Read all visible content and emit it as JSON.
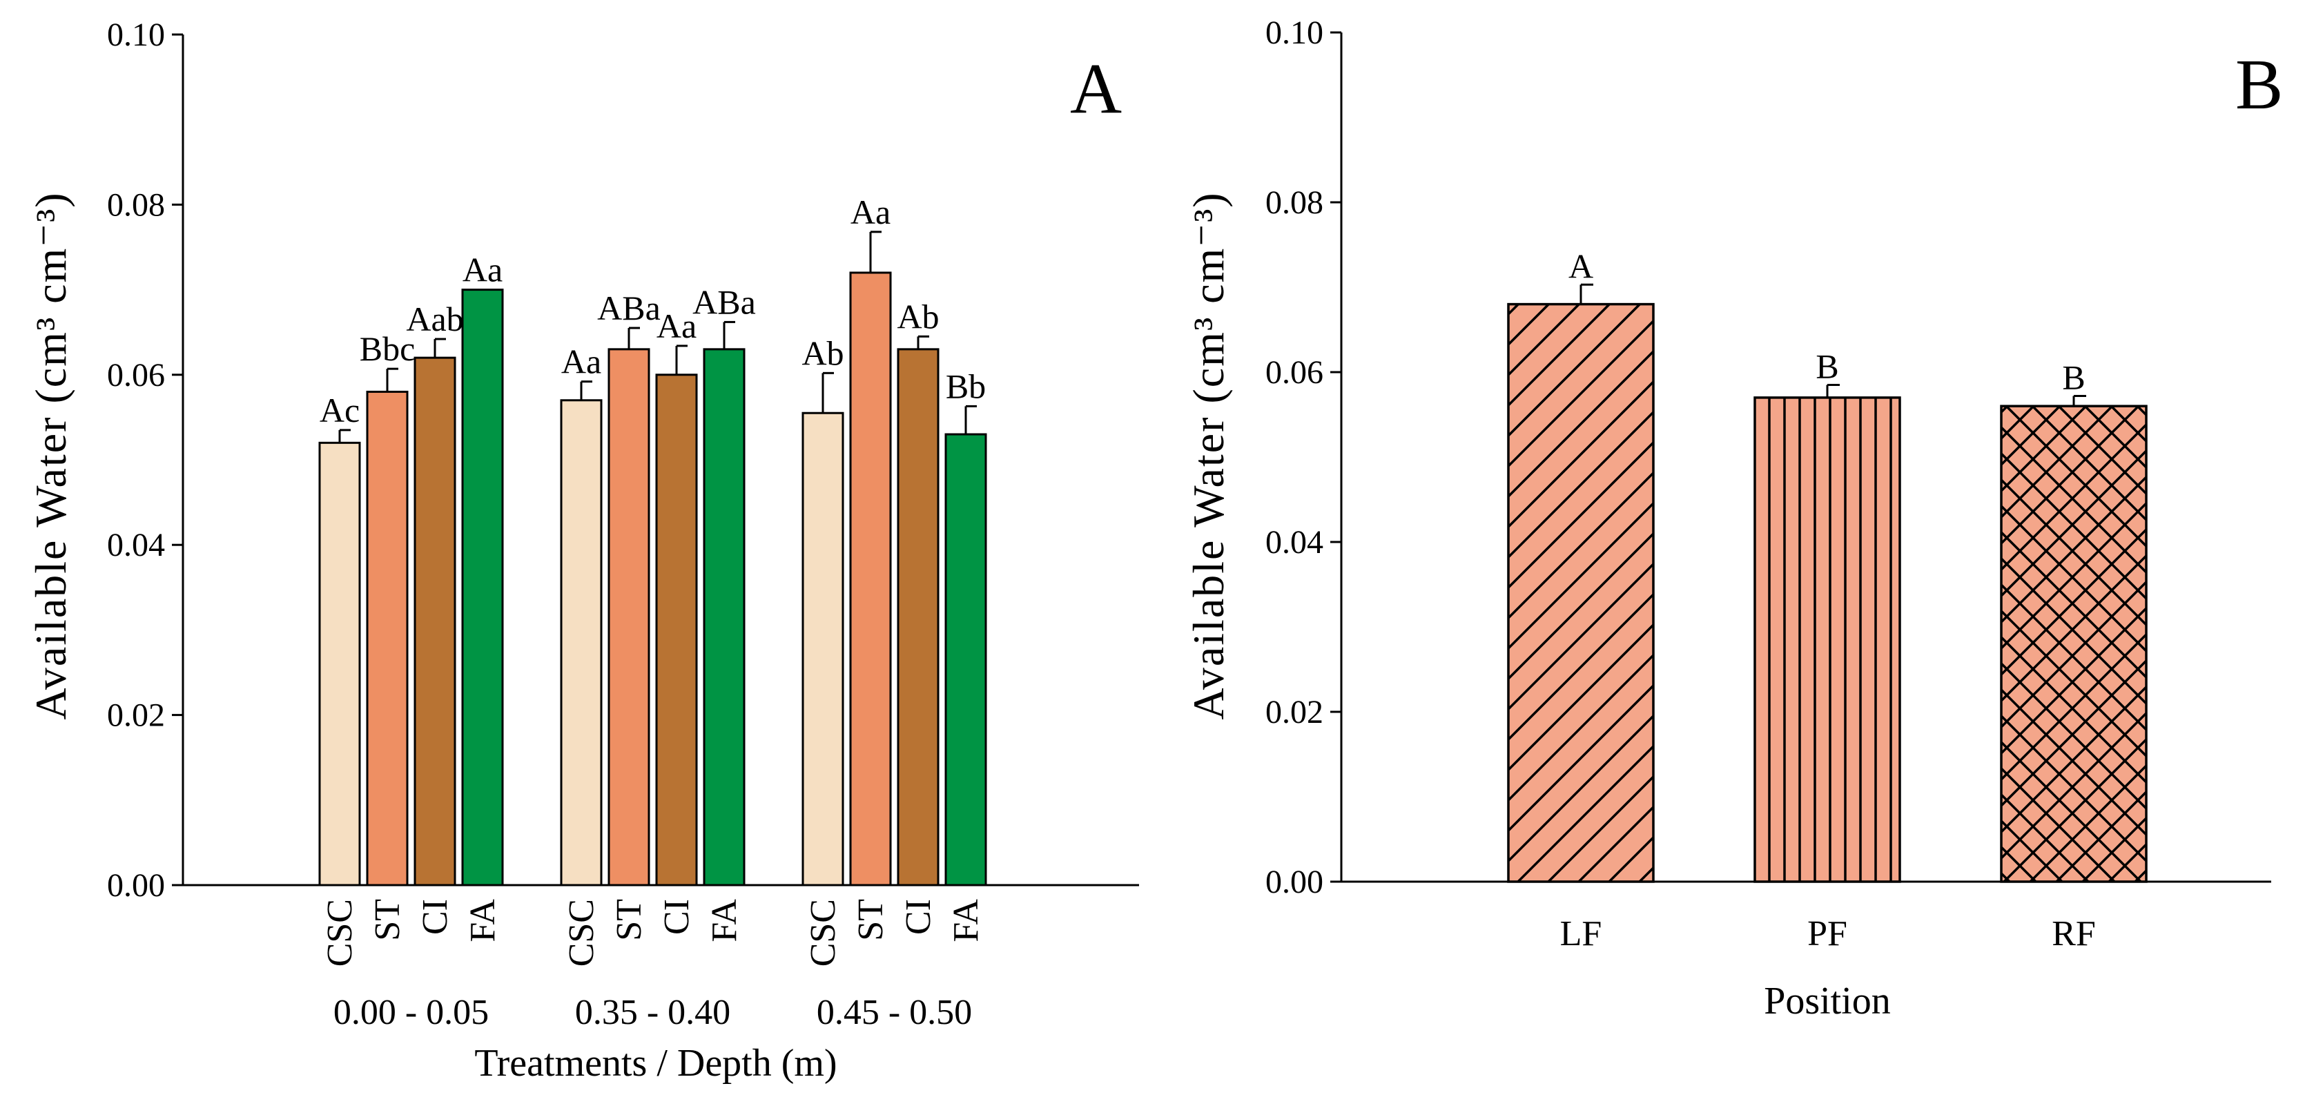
{
  "chart_data": [
    {
      "panel": "A",
      "type": "bar",
      "ylabel": "Available Water (cm³ cm⁻³)",
      "xlabel": "Treatments / Depth (m)",
      "ylim": [
        0,
        0.1
      ],
      "yticks": [
        "0.00",
        "0.02",
        "0.04",
        "0.06",
        "0.08",
        "0.10"
      ],
      "groups": [
        {
          "depth": "0.00 - 0.05",
          "bars": [
            {
              "treatment": "CSC",
              "value": 0.052,
              "error": 0.0015,
              "label": "Ac",
              "color": "#f6dfc2"
            },
            {
              "treatment": "ST",
              "value": 0.058,
              "error": 0.0027,
              "label": "Bbc",
              "color": "#ee8f63"
            },
            {
              "treatment": "CI",
              "value": 0.062,
              "error": 0.0022,
              "label": "Aab",
              "color": "#b87333"
            },
            {
              "treatment": "FA",
              "value": 0.07,
              "error": 0.0,
              "label": "Aa",
              "color": "#009444"
            }
          ]
        },
        {
          "depth": "0.35 - 0.40",
          "bars": [
            {
              "treatment": "CSC",
              "value": 0.057,
              "error": 0.0022,
              "label": "Aa",
              "color": "#f6dfc2"
            },
            {
              "treatment": "ST",
              "value": 0.063,
              "error": 0.0025,
              "label": "ABa",
              "color": "#ee8f63"
            },
            {
              "treatment": "CI",
              "value": 0.06,
              "error": 0.0034,
              "label": "Aa",
              "color": "#b87333"
            },
            {
              "treatment": "FA",
              "value": 0.063,
              "error": 0.0032,
              "label": "ABa",
              "color": "#009444"
            }
          ]
        },
        {
          "depth": "0.45 - 0.50",
          "bars": [
            {
              "treatment": "CSC",
              "value": 0.0555,
              "error": 0.0047,
              "label": "Ab",
              "color": "#f6dfc2"
            },
            {
              "treatment": "ST",
              "value": 0.072,
              "error": 0.0048,
              "label": "Aa",
              "color": "#ee8f63"
            },
            {
              "treatment": "CI",
              "value": 0.063,
              "error": 0.0015,
              "label": "Ab",
              "color": "#b87333"
            },
            {
              "treatment": "FA",
              "value": 0.053,
              "error": 0.0033,
              "label": "Bb",
              "color": "#009444"
            }
          ]
        }
      ]
    },
    {
      "panel": "B",
      "type": "bar",
      "ylabel": "Available Water (cm³ cm⁻³)",
      "xlabel": "Position",
      "ylim": [
        0,
        0.1
      ],
      "yticks": [
        "0.00",
        "0.02",
        "0.04",
        "0.06",
        "0.08",
        "0.10"
      ],
      "categories": [
        "LF",
        "PF",
        "RF"
      ],
      "values": [
        0.068,
        0.057,
        0.056
      ],
      "errors": [
        0.0023,
        0.0015,
        0.0012
      ],
      "labels": [
        "A",
        "B",
        "B"
      ],
      "patterns": [
        "diagonal",
        "vertical",
        "crosshatch"
      ],
      "fill_color": "#f4a68a"
    }
  ]
}
